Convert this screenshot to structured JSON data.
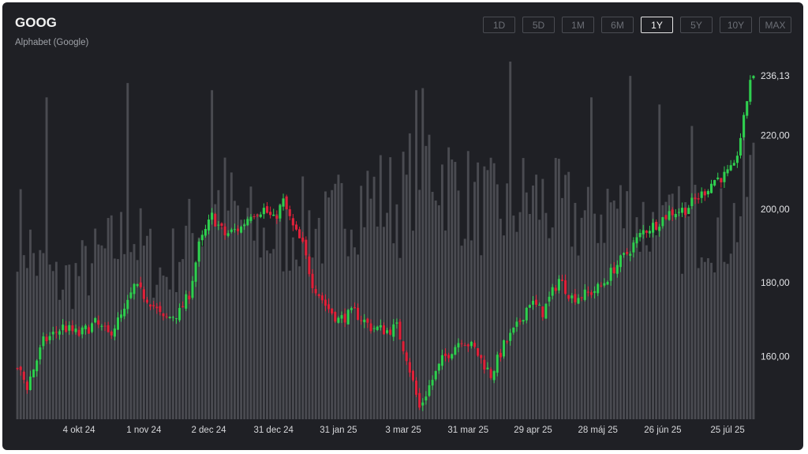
{
  "header": {
    "ticker": "GOOG",
    "company": "Alphabet (Google)"
  },
  "range_buttons": [
    "1D",
    "5D",
    "1M",
    "6M",
    "1Y",
    "5Y",
    "10Y",
    "MAX"
  ],
  "active_range": "1Y",
  "colors": {
    "up": "#2fcf4f",
    "down": "#e0213a",
    "volume": "#4a4b51",
    "background": "#1f2025"
  },
  "chart_data": {
    "type": "candlestick",
    "ylim": [
      143,
      240
    ],
    "y_ticks": [
      160,
      180,
      200,
      220
    ],
    "y_tick_labels": [
      "160,00",
      "180,00",
      "200,00",
      "220,00"
    ],
    "last_price_label": "236,13",
    "last_price": 236.13,
    "x_tick_labels": [
      "4 okt 24",
      "1 nov 24",
      "2 dec 24",
      "31 dec 24",
      "31 jan 25",
      "3 mar 25",
      "31 mar 25",
      "29 apr 25",
      "28 máj 25",
      "26 jún 25",
      "25 júl 25"
    ],
    "x_tick_positions": [
      19,
      39,
      59,
      79,
      99,
      119,
      139,
      159,
      179,
      199,
      219
    ],
    "close_anchors": [
      [
        0,
        157
      ],
      [
        3,
        152
      ],
      [
        8,
        164
      ],
      [
        14,
        168
      ],
      [
        19,
        166
      ],
      [
        24,
        169
      ],
      [
        28,
        166
      ],
      [
        33,
        172
      ],
      [
        36,
        179
      ],
      [
        41,
        175
      ],
      [
        45,
        170
      ],
      [
        50,
        172
      ],
      [
        53,
        177
      ],
      [
        56,
        190
      ],
      [
        60,
        198
      ],
      [
        64,
        193
      ],
      [
        69,
        195
      ],
      [
        72,
        199
      ],
      [
        76,
        200
      ],
      [
        79,
        197
      ],
      [
        82,
        202
      ],
      [
        85,
        195
      ],
      [
        88,
        190
      ],
      [
        91,
        180
      ],
      [
        95,
        174
      ],
      [
        99,
        170
      ],
      [
        104,
        172
      ],
      [
        109,
        168
      ],
      [
        114,
        167
      ],
      [
        117,
        168
      ],
      [
        120,
        160
      ],
      [
        124,
        146
      ],
      [
        127,
        152
      ],
      [
        131,
        159
      ],
      [
        137,
        165
      ],
      [
        141,
        162
      ],
      [
        146,
        155
      ],
      [
        150,
        163
      ],
      [
        154,
        168
      ],
      [
        158,
        175
      ],
      [
        162,
        172
      ],
      [
        167,
        181
      ],
      [
        171,
        176
      ],
      [
        176,
        177
      ],
      [
        180,
        179
      ],
      [
        184,
        184
      ],
      [
        188,
        188
      ],
      [
        193,
        194
      ],
      [
        197,
        196
      ],
      [
        201,
        199
      ],
      [
        206,
        200
      ],
      [
        211,
        204
      ],
      [
        215,
        208
      ],
      [
        218,
        209
      ],
      [
        221,
        211
      ],
      [
        224,
        224
      ],
      [
        226,
        235.5
      ]
    ],
    "volume_anchors": [
      [
        0,
        55
      ],
      [
        7,
        42
      ],
      [
        12,
        38
      ],
      [
        18,
        40
      ],
      [
        24,
        44
      ],
      [
        30,
        48
      ],
      [
        35,
        52
      ],
      [
        40,
        46
      ],
      [
        45,
        40
      ],
      [
        52,
        50
      ],
      [
        58,
        55
      ],
      [
        63,
        62
      ],
      [
        68,
        56
      ],
      [
        74,
        52
      ],
      [
        80,
        50
      ],
      [
        86,
        54
      ],
      [
        91,
        55
      ],
      [
        96,
        52
      ],
      [
        101,
        60
      ],
      [
        107,
        62
      ],
      [
        113,
        62
      ],
      [
        118,
        60
      ],
      [
        121,
        66
      ],
      [
        124,
        76
      ],
      [
        130,
        70
      ],
      [
        136,
        64
      ],
      [
        142,
        60
      ],
      [
        148,
        58
      ],
      [
        153,
        60
      ],
      [
        158,
        62
      ],
      [
        163,
        60
      ],
      [
        168,
        58
      ],
      [
        173,
        56
      ],
      [
        178,
        58
      ],
      [
        183,
        60
      ],
      [
        189,
        56
      ],
      [
        195,
        54
      ],
      [
        201,
        52
      ],
      [
        207,
        54
      ],
      [
        213,
        56
      ],
      [
        218,
        52
      ],
      [
        223,
        58
      ],
      [
        226,
        68
      ]
    ],
    "volume_spikes": [
      [
        9,
        90
      ],
      [
        34,
        94
      ],
      [
        60,
        92
      ],
      [
        123,
        92
      ],
      [
        152,
        100
      ],
      [
        177,
        90
      ],
      [
        189,
        96
      ],
      [
        198,
        88
      ],
      [
        208,
        82
      ],
      [
        224,
        80
      ]
    ]
  }
}
